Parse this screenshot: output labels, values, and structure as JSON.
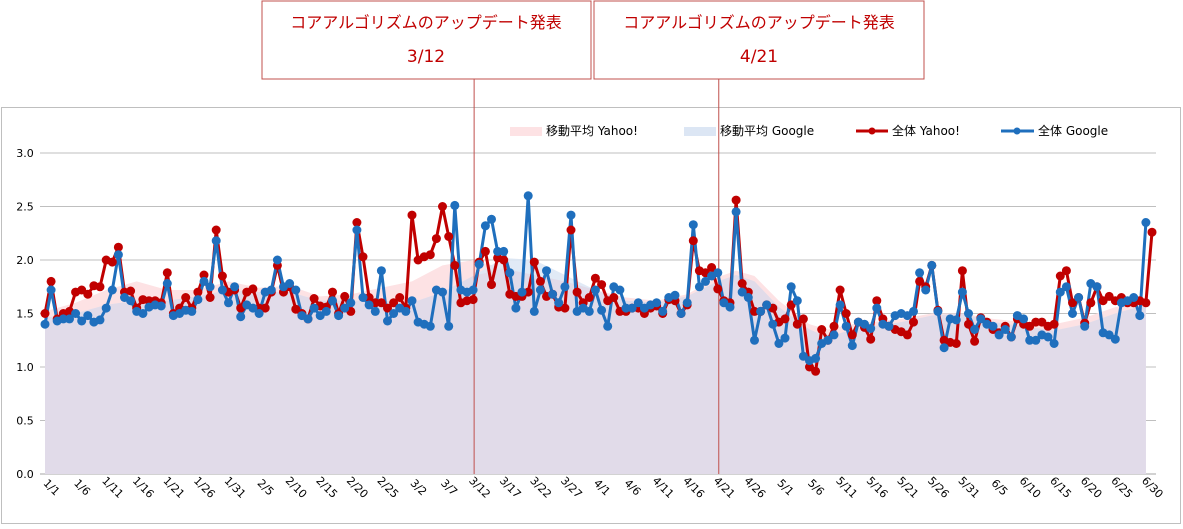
{
  "annotations": [
    {
      "title": "コアアルゴリズムのアップデート発表",
      "date": "3/12"
    },
    {
      "title": "コアアルゴリズムのアップデート発表",
      "date": "4/21"
    }
  ],
  "colors": {
    "yahoo_line": "#c00000",
    "google_line": "#1f6fbd",
    "yahoo_ma_fill": "#fde2e4",
    "google_ma_fill": "#dce6f4",
    "overlap_fill": "#e1dbe9",
    "annotation_border": "#c0504d",
    "grid": "#bfbfbf"
  },
  "chart_data": {
    "type": "line",
    "title": "",
    "xlabel": "",
    "ylabel": "",
    "ylim": [
      0,
      3
    ],
    "yticks": [
      "0.0",
      "0.5",
      "1.0",
      "1.5",
      "2.0",
      "2.5",
      "3.0"
    ],
    "x_start": "1/1",
    "x_end": "6/30",
    "xtick_labels": [
      "1/1",
      "1/6",
      "1/11",
      "1/16",
      "1/21",
      "1/26",
      "1/31",
      "2/5",
      "2/10",
      "2/15",
      "2/20",
      "2/25",
      "3/2",
      "3/7",
      "3/12",
      "3/17",
      "3/22",
      "3/27",
      "4/1",
      "4/6",
      "4/11",
      "4/16",
      "4/21",
      "4/26",
      "5/1",
      "5/6",
      "5/11",
      "5/16",
      "5/21",
      "5/26",
      "5/31",
      "6/5",
      "6/10",
      "6/15",
      "6/20",
      "6/25",
      "6/30"
    ],
    "xtick_step_days": 5,
    "event_days": [
      70,
      110
    ],
    "legend_position": "top-right",
    "legend": [
      {
        "label": "移動平均 Yahoo!",
        "kind": "area",
        "series": "yahoo_ma"
      },
      {
        "label": "移動平均 Google",
        "kind": "area",
        "series": "google_ma"
      },
      {
        "label": "全体 Yahoo!",
        "kind": "line",
        "series": "yahoo"
      },
      {
        "label": "全体 Google",
        "kind": "line",
        "series": "google"
      }
    ],
    "series": [
      {
        "name": "全体 Yahoo!",
        "key": "yahoo",
        "values": [
          1.5,
          1.8,
          1.45,
          1.5,
          1.52,
          1.7,
          1.72,
          1.68,
          1.76,
          1.75,
          2.0,
          1.98,
          2.12,
          1.7,
          1.71,
          1.55,
          1.63,
          1.62,
          1.62,
          1.6,
          1.88,
          1.5,
          1.55,
          1.65,
          1.55,
          1.7,
          1.86,
          1.65,
          2.28,
          1.85,
          1.7,
          1.72,
          1.55,
          1.7,
          1.73,
          1.55,
          1.55,
          1.7,
          1.95,
          1.7,
          1.75,
          1.54,
          1.5,
          1.45,
          1.64,
          1.57,
          1.56,
          1.7,
          1.5,
          1.66,
          1.52,
          2.35,
          2.03,
          1.65,
          1.6,
          1.6,
          1.55,
          1.6,
          1.65,
          1.55,
          2.42,
          2.0,
          2.03,
          2.05,
          2.2,
          2.5,
          2.22,
          1.95,
          1.6,
          1.62,
          1.63,
          1.98,
          2.08,
          1.77,
          2.02,
          2.0,
          1.68,
          1.66,
          1.66,
          1.7,
          1.98,
          1.8,
          1.66,
          1.68,
          1.56,
          1.55,
          2.28,
          1.7,
          1.6,
          1.65,
          1.83,
          1.77,
          1.62,
          1.65,
          1.52,
          1.52,
          1.55,
          1.55,
          1.5,
          1.55,
          1.57,
          1.5,
          1.63,
          1.62,
          1.5,
          1.58,
          2.18,
          1.9,
          1.88,
          1.93,
          1.73,
          1.62,
          1.6,
          2.56,
          1.78,
          1.7,
          1.52,
          1.52,
          1.58,
          1.55,
          1.42,
          1.45,
          1.58,
          1.4,
          1.45,
          1.0,
          0.96,
          1.35,
          1.25,
          1.38,
          1.72,
          1.5,
          1.3,
          1.42,
          1.37,
          1.26,
          1.62,
          1.45,
          1.38,
          1.35,
          1.33,
          1.3,
          1.42,
          1.8,
          1.75,
          1.95,
          1.53,
          1.25,
          1.23,
          1.22,
          1.9,
          1.4,
          1.24,
          1.46,
          1.42,
          1.35,
          1.32,
          1.38,
          1.28,
          1.45,
          1.4,
          1.38,
          1.42,
          1.42,
          1.38,
          1.4,
          1.85,
          1.9,
          1.6,
          1.65,
          1.41,
          1.6,
          1.75,
          1.62,
          1.66,
          1.62,
          1.65,
          1.6,
          1.6,
          1.62,
          1.6,
          2.26
        ]
      },
      {
        "name": "全体 Google",
        "key": "google",
        "values": [
          1.4,
          1.72,
          1.43,
          1.45,
          1.45,
          1.5,
          1.43,
          1.48,
          1.42,
          1.44,
          1.55,
          1.72,
          2.05,
          1.65,
          1.62,
          1.52,
          1.5,
          1.56,
          1.58,
          1.57,
          1.78,
          1.48,
          1.5,
          1.53,
          1.52,
          1.63,
          1.8,
          1.75,
          2.18,
          1.72,
          1.6,
          1.75,
          1.47,
          1.58,
          1.55,
          1.5,
          1.7,
          1.72,
          2.0,
          1.75,
          1.78,
          1.72,
          1.48,
          1.45,
          1.55,
          1.48,
          1.52,
          1.62,
          1.48,
          1.55,
          1.6,
          2.28,
          1.65,
          1.58,
          1.52,
          1.9,
          1.43,
          1.5,
          1.55,
          1.52,
          1.62,
          1.42,
          1.4,
          1.38,
          1.72,
          1.7,
          1.38,
          2.51,
          1.72,
          1.7,
          1.72,
          1.96,
          2.32,
          2.38,
          2.08,
          2.08,
          1.88,
          1.55,
          1.7,
          2.6,
          1.52,
          1.72,
          1.9,
          1.68,
          1.6,
          1.75,
          2.42,
          1.52,
          1.55,
          1.52,
          1.72,
          1.53,
          1.38,
          1.75,
          1.72,
          1.55,
          1.55,
          1.6,
          1.55,
          1.58,
          1.6,
          1.52,
          1.65,
          1.67,
          1.5,
          1.6,
          2.33,
          1.75,
          1.8,
          1.85,
          1.88,
          1.6,
          1.56,
          2.45,
          1.7,
          1.65,
          1.25,
          1.52,
          1.58,
          1.4,
          1.22,
          1.27,
          1.75,
          1.62,
          1.1,
          1.06,
          1.08,
          1.22,
          1.25,
          1.3,
          1.58,
          1.38,
          1.2,
          1.42,
          1.4,
          1.36,
          1.55,
          1.4,
          1.38,
          1.48,
          1.5,
          1.48,
          1.52,
          1.88,
          1.72,
          1.95,
          1.52,
          1.18,
          1.45,
          1.44,
          1.7,
          1.5,
          1.35,
          1.45,
          1.4,
          1.38,
          1.3,
          1.35,
          1.28,
          1.48,
          1.45,
          1.25,
          1.25,
          1.3,
          1.28,
          1.22,
          1.7,
          1.75,
          1.5,
          1.65,
          1.38,
          1.78,
          1.75,
          1.32,
          1.3,
          1.26,
          1.6,
          1.62,
          1.65,
          1.48,
          2.35
        ]
      },
      {
        "name": "移動平均 Yahoo!",
        "key": "yahoo_ma",
        "points": [
          [
            0,
            1.52
          ],
          [
            5,
            1.6
          ],
          [
            10,
            1.72
          ],
          [
            15,
            1.8
          ],
          [
            20,
            1.72
          ],
          [
            25,
            1.72
          ],
          [
            30,
            1.8
          ],
          [
            35,
            1.74
          ],
          [
            40,
            1.76
          ],
          [
            45,
            1.66
          ],
          [
            50,
            1.68
          ],
          [
            55,
            1.74
          ],
          [
            60,
            1.8
          ],
          [
            65,
            1.95
          ],
          [
            70,
            2.0
          ],
          [
            75,
            1.92
          ],
          [
            80,
            1.86
          ],
          [
            85,
            1.8
          ],
          [
            90,
            1.72
          ],
          [
            95,
            1.65
          ],
          [
            100,
            1.62
          ],
          [
            105,
            1.68
          ],
          [
            110,
            1.84
          ],
          [
            113,
            1.9
          ],
          [
            116,
            1.85
          ],
          [
            120,
            1.62
          ],
          [
            125,
            1.4
          ],
          [
            128,
            1.35
          ],
          [
            132,
            1.4
          ],
          [
            140,
            1.45
          ],
          [
            145,
            1.5
          ],
          [
            150,
            1.5
          ],
          [
            155,
            1.45
          ],
          [
            160,
            1.42
          ],
          [
            165,
            1.4
          ],
          [
            170,
            1.46
          ],
          [
            175,
            1.56
          ],
          [
            180,
            1.6
          ]
        ]
      },
      {
        "name": "移動平均 Google",
        "key": "google_ma",
        "points": [
          [
            0,
            1.46
          ],
          [
            5,
            1.5
          ],
          [
            10,
            1.58
          ],
          [
            15,
            1.62
          ],
          [
            20,
            1.62
          ],
          [
            25,
            1.66
          ],
          [
            30,
            1.72
          ],
          [
            35,
            1.7
          ],
          [
            40,
            1.7
          ],
          [
            45,
            1.62
          ],
          [
            50,
            1.62
          ],
          [
            55,
            1.62
          ],
          [
            60,
            1.6
          ],
          [
            65,
            1.7
          ],
          [
            70,
            1.85
          ],
          [
            75,
            2.02
          ],
          [
            80,
            2.0
          ],
          [
            85,
            1.86
          ],
          [
            90,
            1.72
          ],
          [
            95,
            1.62
          ],
          [
            100,
            1.6
          ],
          [
            105,
            1.66
          ],
          [
            110,
            1.8
          ],
          [
            113,
            1.86
          ],
          [
            116,
            1.8
          ],
          [
            120,
            1.56
          ],
          [
            125,
            1.35
          ],
          [
            128,
            1.28
          ],
          [
            132,
            1.35
          ],
          [
            140,
            1.42
          ],
          [
            145,
            1.48
          ],
          [
            150,
            1.5
          ],
          [
            155,
            1.42
          ],
          [
            160,
            1.38
          ],
          [
            165,
            1.34
          ],
          [
            170,
            1.4
          ],
          [
            175,
            1.5
          ],
          [
            180,
            1.58
          ]
        ]
      }
    ]
  }
}
